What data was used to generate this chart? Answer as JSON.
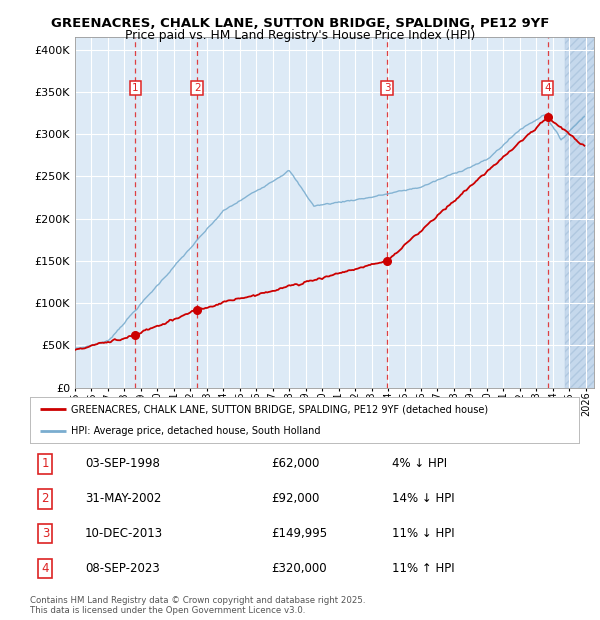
{
  "title1": "GREENACRES, CHALK LANE, SUTTON BRIDGE, SPALDING, PE12 9YF",
  "title2": "Price paid vs. HM Land Registry's House Price Index (HPI)",
  "ylabel_ticks": [
    "£0",
    "£50K",
    "£100K",
    "£150K",
    "£200K",
    "£250K",
    "£300K",
    "£350K",
    "£400K"
  ],
  "ylabel_values": [
    0,
    50000,
    100000,
    150000,
    200000,
    250000,
    300000,
    350000,
    400000
  ],
  "ylim": [
    0,
    415000
  ],
  "xlim_start": 1995.0,
  "xlim_end": 2026.5,
  "hpi_color": "#7aadcf",
  "price_color": "#cc0000",
  "vline_color": "#dd2222",
  "bg_color": "#ddeaf6",
  "legend_label1": "GREENACRES, CHALK LANE, SUTTON BRIDGE, SPALDING, PE12 9YF (detached house)",
  "legend_label2": "HPI: Average price, detached house, South Holland",
  "footer": "Contains HM Land Registry data © Crown copyright and database right 2025.\nThis data is licensed under the Open Government Licence v3.0.",
  "sales": [
    {
      "num": 1,
      "year": 1998.67,
      "price": 62000
    },
    {
      "num": 2,
      "year": 2002.41,
      "price": 92000
    },
    {
      "num": 3,
      "year": 2013.94,
      "price": 149995
    },
    {
      "num": 4,
      "year": 2023.68,
      "price": 320000
    }
  ],
  "table_rows": [
    {
      "num": 1,
      "date": "03-SEP-1998",
      "price": "£62,000",
      "pct": "4% ↓ HPI"
    },
    {
      "num": 2,
      "date": "31-MAY-2002",
      "price": "£92,000",
      "pct": "14% ↓ HPI"
    },
    {
      "num": 3,
      "date": "10-DEC-2013",
      "price": "£149,995",
      "pct": "11% ↓ HPI"
    },
    {
      "num": 4,
      "date": "08-SEP-2023",
      "price": "£320,000",
      "pct": "11% ↑ HPI"
    }
  ],
  "hatch_start": 2024.75
}
